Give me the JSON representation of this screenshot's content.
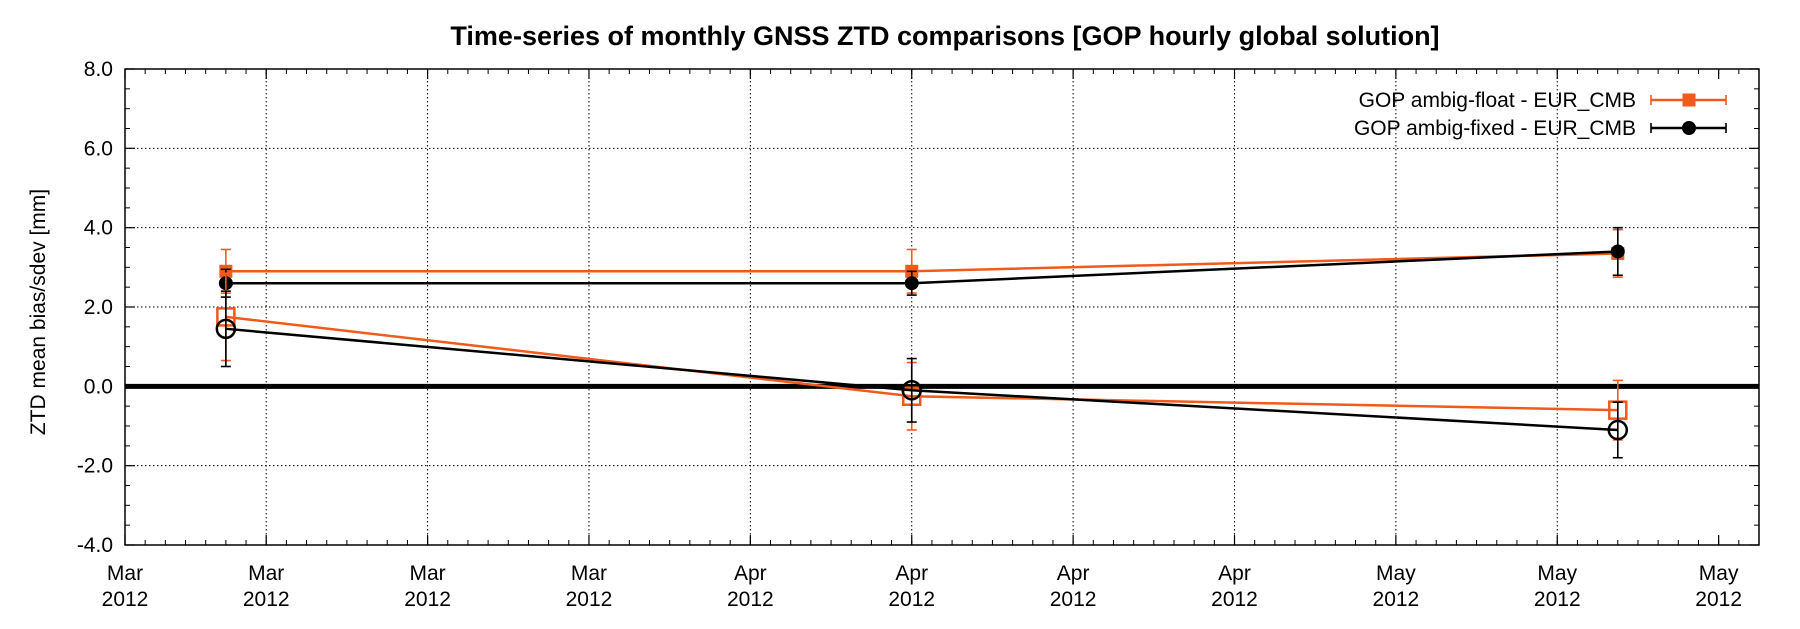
{
  "chart_data": {
    "type": "line",
    "title": "Time-series of monthly GNSS ZTD comparisons [GOP hourly global solution]",
    "xlabel": "",
    "ylabel": "ZTD mean bias/sdev [mm]",
    "ylim": [
      -4.0,
      8.0
    ],
    "yticks": [
      -4.0,
      -2.0,
      0.0,
      2.0,
      4.0,
      6.0,
      8.0
    ],
    "ytick_labels": [
      "-4.0",
      "-2.0",
      "0.0",
      "2.0",
      "4.0",
      "6.0",
      "8.0"
    ],
    "xlim": [
      "2012-02-29",
      "2012-05-20"
    ],
    "xticks": [
      "2012-02-29",
      "2012-03-07",
      "2012-03-15",
      "2012-03-23",
      "2012-03-31",
      "2012-04-08",
      "2012-04-16",
      "2012-04-24",
      "2012-05-02",
      "2012-05-10",
      "2012-05-18"
    ],
    "xtick_labels": [
      {
        "line1": "Mar",
        "line2": "2012"
      },
      {
        "line1": "Mar",
        "line2": "2012"
      },
      {
        "line1": "Mar",
        "line2": "2012"
      },
      {
        "line1": "Mar",
        "line2": "2012"
      },
      {
        "line1": "Apr",
        "line2": "2012"
      },
      {
        "line1": "Apr",
        "line2": "2012"
      },
      {
        "line1": "Apr",
        "line2": "2012"
      },
      {
        "line1": "Apr",
        "line2": "2012"
      },
      {
        "line1": "May",
        "line2": "2012"
      },
      {
        "line1": "May",
        "line2": "2012"
      },
      {
        "line1": "May",
        "line2": "2012"
      }
    ],
    "reference_line_y": 0.0,
    "grid": true,
    "legend_position": "top-right",
    "x": [
      "2012-03-05",
      "2012-04-08",
      "2012-05-13"
    ],
    "series": [
      {
        "name": "GOP ambig-float - EUR_CMB",
        "key": "float_sdev",
        "color": "#f05a1a",
        "marker": "square-filled",
        "values": [
          2.9,
          2.9,
          3.35
        ],
        "errors": [
          0.55,
          0.55,
          0.6
        ],
        "in_legend": true
      },
      {
        "name": "GOP ambig-fixed - EUR_CMB",
        "key": "fixed_sdev",
        "color": "#000000",
        "marker": "circle-filled",
        "values": [
          2.6,
          2.6,
          3.4
        ],
        "errors": [
          0.35,
          0.3,
          0.6
        ],
        "in_legend": true
      },
      {
        "key": "float_bias",
        "color": "#f05a1a",
        "marker": "square-open",
        "values": [
          1.75,
          -0.25,
          -0.6
        ],
        "errors": [
          1.1,
          0.85,
          0.75
        ],
        "in_legend": false
      },
      {
        "key": "fixed_bias",
        "color": "#000000",
        "marker": "circle-open",
        "values": [
          1.45,
          -0.1,
          -1.1
        ],
        "errors": [
          0.95,
          0.8,
          0.7
        ],
        "in_legend": false
      }
    ]
  }
}
